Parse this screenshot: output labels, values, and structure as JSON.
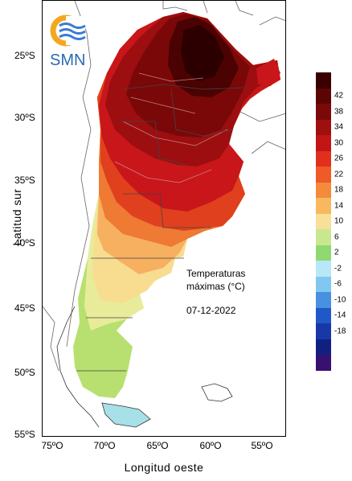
{
  "map": {
    "title_line1": "Temperaturas",
    "title_line2": "máximas (°C)",
    "date": "07-12-2022",
    "x_axis_title": "Longitud oeste",
    "y_axis_title": "Latitud sur",
    "x_ticks": [
      "75ºO",
      "70ºO",
      "65ºO",
      "60ºO",
      "55ºO"
    ],
    "y_ticks": [
      "25ºS",
      "30ºS",
      "35ºS",
      "40ºS",
      "45ºS",
      "50ºS",
      "55ºS"
    ]
  },
  "logo": {
    "text": "SMN",
    "icon": "smn-logo-icon"
  },
  "legend": {
    "labels": [
      "42",
      "38",
      "34",
      "30",
      "26",
      "22",
      "18",
      "14",
      "10",
      "6",
      "2",
      "-2",
      "-6",
      "-10",
      "-14",
      "-18"
    ],
    "colors": [
      "#3a0000",
      "#5c0505",
      "#7a0a0a",
      "#9e1010",
      "#c21515",
      "#e0301c",
      "#ee5a28",
      "#f48a3c",
      "#f8b860",
      "#f8e098",
      "#c8e890",
      "#90d870",
      "#b8e8f8",
      "#80c8f0",
      "#4890e0",
      "#2058c8",
      "#1838a8",
      "#102080",
      "#381070"
    ]
  }
}
